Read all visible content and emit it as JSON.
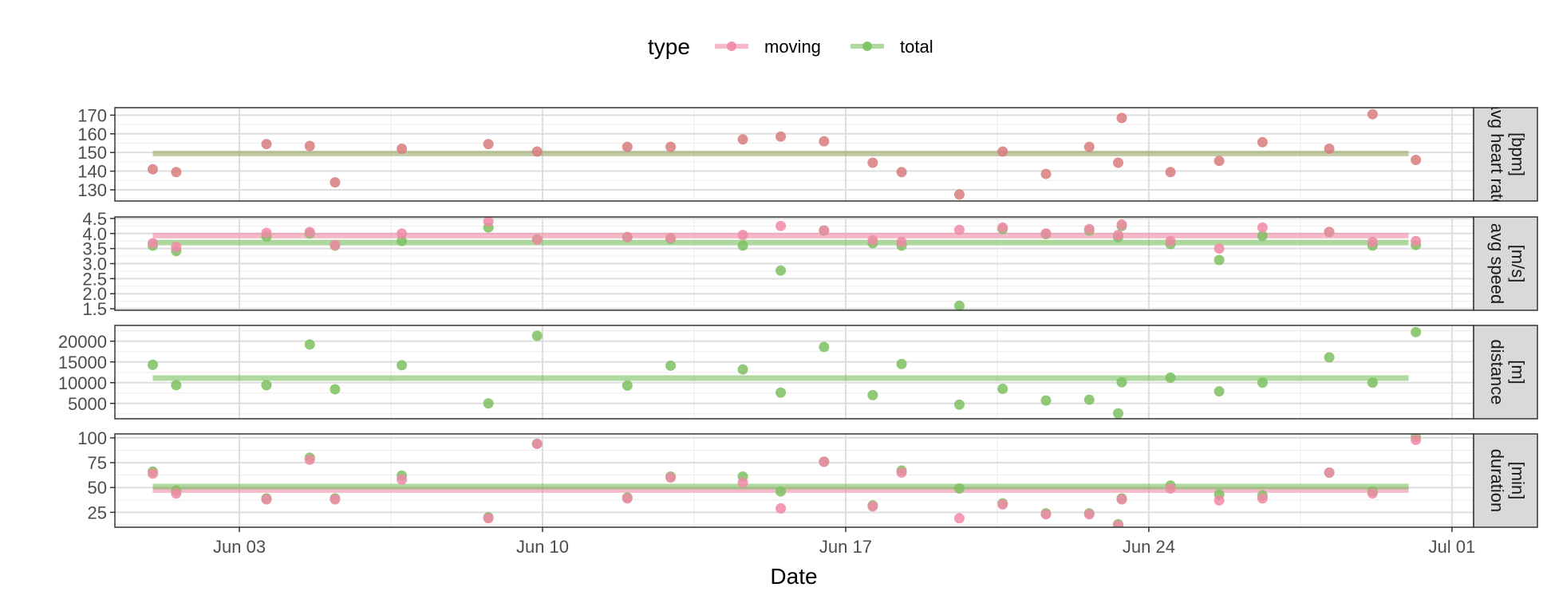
{
  "chart_data": {
    "type": "scatter",
    "xlabel": "Date",
    "x_ticks": [
      {
        "date": "2020-06-03",
        "label": "Jun 03"
      },
      {
        "date": "2020-06-10",
        "label": "Jun 10"
      },
      {
        "date": "2020-06-17",
        "label": "Jun 17"
      },
      {
        "date": "2020-06-24",
        "label": "Jun 24"
      },
      {
        "date": "2020-07-01",
        "label": "Jul 01"
      }
    ],
    "xlim": [
      "2020-05-31T03:00",
      "2020-07-01T12:00"
    ],
    "legend": {
      "title": "type",
      "position": "top",
      "entries": [
        {
          "name": "moving",
          "color": "#f08aa6"
        },
        {
          "name": "total",
          "color": "#7cc060"
        }
      ]
    },
    "colors": {
      "moving": "#f08aa6",
      "total": "#7cc060",
      "overlap": "#d87c7e"
    },
    "dates": [
      "2020-06-01",
      "2020-06-02",
      "2020-06-03",
      "2020-06-04",
      "2020-06-05",
      "2020-06-06",
      "2020-06-08",
      "2020-06-09",
      "2020-06-11",
      "2020-06-12",
      "2020-06-14",
      "2020-06-15",
      "2020-06-16",
      "2020-06-17",
      "2020-06-18",
      "2020-06-19",
      "2020-06-20",
      "2020-06-21",
      "2020-06-22",
      "2020-06-23",
      "2020-06-24",
      "2020-06-25",
      "2020-06-26",
      "2020-06-28",
      "2020-06-29",
      "2020-06-30"
    ],
    "panels": [
      {
        "strip": [
          "avg heart rate",
          "[bpm]"
        ],
        "ylim": [
          124,
          174
        ],
        "yticks": [
          130,
          140,
          150,
          160,
          170
        ],
        "overlap": true,
        "points": [
          {
            "date": "2020-06-01T00:00",
            "value": 141
          },
          {
            "date": "2020-06-01T13:00",
            "value": 139.5
          },
          {
            "date": "2020-06-03T15:00",
            "value": 154.5
          },
          {
            "date": "2020-06-04T15:00",
            "value": 153.5
          },
          {
            "date": "2020-06-05T05:00",
            "value": 134
          },
          {
            "date": "2020-06-06T18:00",
            "value": 152
          },
          {
            "date": "2020-06-08T18:00",
            "value": 154.5
          },
          {
            "date": "2020-06-09T21:00",
            "value": 150.5
          },
          {
            "date": "2020-06-11T23:00",
            "value": 153
          },
          {
            "date": "2020-06-12T23:00",
            "value": 153
          },
          {
            "date": "2020-06-14T15:00",
            "value": 157
          },
          {
            "date": "2020-06-15T12:00",
            "value": 158.5
          },
          {
            "date": "2020-06-16T12:00",
            "value": 156
          },
          {
            "date": "2020-06-17T15:00",
            "value": 144.5
          },
          {
            "date": "2020-06-18T07:00",
            "value": 139.5
          },
          {
            "date": "2020-06-19T15:00",
            "value": 127.5
          },
          {
            "date": "2020-06-20T15:00",
            "value": 150.5
          },
          {
            "date": "2020-06-21T15:00",
            "value": 138.5
          },
          {
            "date": "2020-06-22T15:00",
            "value": 153
          },
          {
            "date": "2020-06-23T07:00",
            "value": 144.5
          },
          {
            "date": "2020-06-23T09:00",
            "value": 168.5
          },
          {
            "date": "2020-06-24T12:00",
            "value": 139.5
          },
          {
            "date": "2020-06-25T15:00",
            "value": 145.5
          },
          {
            "date": "2020-06-26T15:00",
            "value": 155.5
          },
          {
            "date": "2020-06-28T04:00",
            "value": 152
          },
          {
            "date": "2020-06-29T04:00",
            "value": 170.5
          },
          {
            "date": "2020-06-30T04:00",
            "value": 146
          }
        ],
        "moving_mean": 149.5,
        "total_mean": 149.5
      },
      {
        "strip": [
          "avg speed",
          "[m/s]"
        ],
        "ylim": [
          1.45,
          4.55
        ],
        "yticks": [
          1.5,
          2.0,
          2.5,
          3.0,
          3.5,
          4.0,
          4.5
        ],
        "ytick_labels": [
          "1.5",
          "2.0",
          "2.5",
          "3.0",
          "3.5",
          "4.0",
          "4.5"
        ],
        "moving": [
          {
            "date": "2020-06-01T00:00",
            "value": 3.68
          },
          {
            "date": "2020-06-01T13:00",
            "value": 3.55
          },
          {
            "date": "2020-06-03T15:00",
            "value": 4.02
          },
          {
            "date": "2020-06-04T15:00",
            "value": 4.05
          },
          {
            "date": "2020-06-05T05:00",
            "value": 3.62
          },
          {
            "date": "2020-06-06T18:00",
            "value": 4.0
          },
          {
            "date": "2020-06-08T18:00",
            "value": 4.4
          },
          {
            "date": "2020-06-09T21:00",
            "value": 3.8
          },
          {
            "date": "2020-06-11T23:00",
            "value": 3.88
          },
          {
            "date": "2020-06-12T23:00",
            "value": 3.85
          },
          {
            "date": "2020-06-14T15:00",
            "value": 3.95
          },
          {
            "date": "2020-06-15T12:00",
            "value": 4.25
          },
          {
            "date": "2020-06-16T12:00",
            "value": 4.1
          },
          {
            "date": "2020-06-17T15:00",
            "value": 3.78
          },
          {
            "date": "2020-06-18T07:00",
            "value": 3.72
          },
          {
            "date": "2020-06-19T15:00",
            "value": 4.12
          },
          {
            "date": "2020-06-20T15:00",
            "value": 4.2
          },
          {
            "date": "2020-06-21T15:00",
            "value": 4.0
          },
          {
            "date": "2020-06-22T15:00",
            "value": 4.15
          },
          {
            "date": "2020-06-23T07:00",
            "value": 3.95
          },
          {
            "date": "2020-06-23T09:00",
            "value": 4.3
          },
          {
            "date": "2020-06-24T12:00",
            "value": 3.75
          },
          {
            "date": "2020-06-25T15:00",
            "value": 3.5
          },
          {
            "date": "2020-06-26T15:00",
            "value": 4.2
          },
          {
            "date": "2020-06-28T04:00",
            "value": 4.05
          },
          {
            "date": "2020-06-29T04:00",
            "value": 3.72
          },
          {
            "date": "2020-06-30T04:00",
            "value": 3.75
          }
        ],
        "total": [
          {
            "date": "2020-06-01T00:00",
            "value": 3.6
          },
          {
            "date": "2020-06-01T13:00",
            "value": 3.42
          },
          {
            "date": "2020-06-03T15:00",
            "value": 3.9
          },
          {
            "date": "2020-06-04T15:00",
            "value": 4.0
          },
          {
            "date": "2020-06-05T05:00",
            "value": 3.6
          },
          {
            "date": "2020-06-06T18:00",
            "value": 3.75
          },
          {
            "date": "2020-06-08T18:00",
            "value": 4.2
          },
          {
            "date": "2020-06-09T21:00",
            "value": 3.8
          },
          {
            "date": "2020-06-11T23:00",
            "value": 3.88
          },
          {
            "date": "2020-06-12T23:00",
            "value": 3.82
          },
          {
            "date": "2020-06-14T15:00",
            "value": 3.6
          },
          {
            "date": "2020-06-15T12:00",
            "value": 2.77
          },
          {
            "date": "2020-06-16T12:00",
            "value": 4.1
          },
          {
            "date": "2020-06-17T15:00",
            "value": 3.68
          },
          {
            "date": "2020-06-18T07:00",
            "value": 3.6
          },
          {
            "date": "2020-06-19T15:00",
            "value": 1.6
          },
          {
            "date": "2020-06-20T15:00",
            "value": 4.15
          },
          {
            "date": "2020-06-21T15:00",
            "value": 3.98
          },
          {
            "date": "2020-06-22T15:00",
            "value": 4.1
          },
          {
            "date": "2020-06-23T07:00",
            "value": 3.88
          },
          {
            "date": "2020-06-23T09:00",
            "value": 4.25
          },
          {
            "date": "2020-06-24T12:00",
            "value": 3.65
          },
          {
            "date": "2020-06-25T15:00",
            "value": 3.12
          },
          {
            "date": "2020-06-26T15:00",
            "value": 3.92
          },
          {
            "date": "2020-06-28T04:00",
            "value": 4.05
          },
          {
            "date": "2020-06-29T04:00",
            "value": 3.6
          },
          {
            "date": "2020-06-30T04:00",
            "value": 3.62
          }
        ],
        "moving_mean": 3.93,
        "total_mean": 3.7
      },
      {
        "strip": [
          "distance",
          "[m]"
        ],
        "ylim": [
          1300,
          23800
        ],
        "yticks": [
          5000,
          10000,
          15000,
          20000
        ],
        "total": [
          {
            "date": "2020-06-01T00:00",
            "value": 14300
          },
          {
            "date": "2020-06-01T13:00",
            "value": 9400
          },
          {
            "date": "2020-06-03T15:00",
            "value": 9400
          },
          {
            "date": "2020-06-04T15:00",
            "value": 19200
          },
          {
            "date": "2020-06-05T05:00",
            "value": 8400
          },
          {
            "date": "2020-06-06T18:00",
            "value": 14200
          },
          {
            "date": "2020-06-08T18:00",
            "value": 5000
          },
          {
            "date": "2020-06-09T21:00",
            "value": 21300
          },
          {
            "date": "2020-06-11T23:00",
            "value": 9300
          },
          {
            "date": "2020-06-12T23:00",
            "value": 14100
          },
          {
            "date": "2020-06-14T15:00",
            "value": 13200
          },
          {
            "date": "2020-06-15T12:00",
            "value": 7600
          },
          {
            "date": "2020-06-16T12:00",
            "value": 18600
          },
          {
            "date": "2020-06-17T15:00",
            "value": 7000
          },
          {
            "date": "2020-06-18T07:00",
            "value": 14500
          },
          {
            "date": "2020-06-19T15:00",
            "value": 4700
          },
          {
            "date": "2020-06-20T15:00",
            "value": 8500
          },
          {
            "date": "2020-06-21T15:00",
            "value": 5700
          },
          {
            "date": "2020-06-22T15:00",
            "value": 5900
          },
          {
            "date": "2020-06-23T07:00",
            "value": 2600
          },
          {
            "date": "2020-06-23T09:00",
            "value": 10100
          },
          {
            "date": "2020-06-24T12:00",
            "value": 11200
          },
          {
            "date": "2020-06-25T15:00",
            "value": 7900
          },
          {
            "date": "2020-06-26T15:00",
            "value": 10000
          },
          {
            "date": "2020-06-28T04:00",
            "value": 16100
          },
          {
            "date": "2020-06-29T04:00",
            "value": 10000
          },
          {
            "date": "2020-06-30T04:00",
            "value": 22200
          }
        ],
        "total_mean": 11100
      },
      {
        "strip": [
          "duration",
          "[min]"
        ],
        "ylim": [
          10,
          104
        ],
        "yticks": [
          25,
          50,
          75,
          100
        ],
        "moving": [
          {
            "date": "2020-06-01T00:00",
            "value": 64
          },
          {
            "date": "2020-06-01T13:00",
            "value": 44
          },
          {
            "date": "2020-06-03T15:00",
            "value": 38
          },
          {
            "date": "2020-06-04T15:00",
            "value": 78
          },
          {
            "date": "2020-06-05T05:00",
            "value": 38
          },
          {
            "date": "2020-06-06T18:00",
            "value": 58
          },
          {
            "date": "2020-06-08T18:00",
            "value": 19
          },
          {
            "date": "2020-06-09T21:00",
            "value": 94
          },
          {
            "date": "2020-06-11T23:00",
            "value": 39
          },
          {
            "date": "2020-06-12T23:00",
            "value": 60
          },
          {
            "date": "2020-06-14T15:00",
            "value": 55
          },
          {
            "date": "2020-06-15T12:00",
            "value": 29
          },
          {
            "date": "2020-06-16T12:00",
            "value": 76
          },
          {
            "date": "2020-06-17T15:00",
            "value": 31
          },
          {
            "date": "2020-06-18T07:00",
            "value": 65
          },
          {
            "date": "2020-06-19T15:00",
            "value": 19
          },
          {
            "date": "2020-06-20T15:00",
            "value": 33
          },
          {
            "date": "2020-06-21T15:00",
            "value": 23
          },
          {
            "date": "2020-06-22T15:00",
            "value": 23
          },
          {
            "date": "2020-06-23T07:00",
            "value": 12
          },
          {
            "date": "2020-06-23T09:00",
            "value": 38
          },
          {
            "date": "2020-06-24T12:00",
            "value": 49
          },
          {
            "date": "2020-06-25T15:00",
            "value": 37
          },
          {
            "date": "2020-06-26T15:00",
            "value": 39
          },
          {
            "date": "2020-06-28T04:00",
            "value": 65
          },
          {
            "date": "2020-06-29T04:00",
            "value": 44
          },
          {
            "date": "2020-06-30T04:00",
            "value": 98
          }
        ],
        "total": [
          {
            "date": "2020-06-01T00:00",
            "value": 66
          },
          {
            "date": "2020-06-01T13:00",
            "value": 47
          },
          {
            "date": "2020-06-03T15:00",
            "value": 39
          },
          {
            "date": "2020-06-04T15:00",
            "value": 80
          },
          {
            "date": "2020-06-05T05:00",
            "value": 39
          },
          {
            "date": "2020-06-06T18:00",
            "value": 62
          },
          {
            "date": "2020-06-08T18:00",
            "value": 20
          },
          {
            "date": "2020-06-09T21:00",
            "value": 94
          },
          {
            "date": "2020-06-11T23:00",
            "value": 40
          },
          {
            "date": "2020-06-12T23:00",
            "value": 61
          },
          {
            "date": "2020-06-14T15:00",
            "value": 61
          },
          {
            "date": "2020-06-15T12:00",
            "value": 46
          },
          {
            "date": "2020-06-16T12:00",
            "value": 76
          },
          {
            "date": "2020-06-17T15:00",
            "value": 32
          },
          {
            "date": "2020-06-18T07:00",
            "value": 67
          },
          {
            "date": "2020-06-19T15:00",
            "value": 49
          },
          {
            "date": "2020-06-20T15:00",
            "value": 34
          },
          {
            "date": "2020-06-21T15:00",
            "value": 24
          },
          {
            "date": "2020-06-22T15:00",
            "value": 24
          },
          {
            "date": "2020-06-23T07:00",
            "value": 13
          },
          {
            "date": "2020-06-23T09:00",
            "value": 39
          },
          {
            "date": "2020-06-24T12:00",
            "value": 52
          },
          {
            "date": "2020-06-25T15:00",
            "value": 43
          },
          {
            "date": "2020-06-26T15:00",
            "value": 42
          },
          {
            "date": "2020-06-28T04:00",
            "value": 65
          },
          {
            "date": "2020-06-29T04:00",
            "value": 46
          },
          {
            "date": "2020-06-30T04:00",
            "value": 101
          }
        ],
        "moving_mean": 47.5,
        "total_mean": 51
      }
    ]
  }
}
